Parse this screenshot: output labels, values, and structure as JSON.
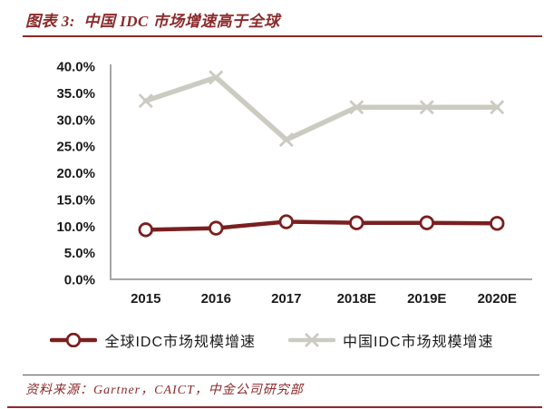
{
  "header": {
    "title": "图表 3:  中国 IDC 市场增速高于全球"
  },
  "footer": {
    "source": "资料来源：Gartner，CAICT，中金公司研究部"
  },
  "colors": {
    "accent_dark_red": "#8B2A2B",
    "series_global": "#7A1F20",
    "series_china": "#CBCBC2",
    "axis_line": "#A6A6A6",
    "tick_text": "#1A1A1A",
    "footer_divider": "#595959"
  },
  "legend": {
    "items": [
      {
        "label": "全球IDC市场规模增速"
      },
      {
        "label": "中国IDC市场规模增速"
      }
    ]
  },
  "chart_data": {
    "type": "line",
    "title": "中国 IDC 市场增速高于全球",
    "categories": [
      "2015",
      "2016",
      "2017",
      "2018E",
      "2019E",
      "2020E"
    ],
    "series": [
      {
        "name": "全球IDC市场规模增速",
        "marker": "circle",
        "color": "#7A1F20",
        "line_width": 4.5,
        "values": [
          9.3,
          9.6,
          10.8,
          10.6,
          10.6,
          10.5
        ]
      },
      {
        "name": "中国IDC市场规模增速",
        "marker": "x",
        "color": "#CBCBC2",
        "line_width": 5.5,
        "values": [
          33.5,
          37.9,
          26.2,
          32.3,
          32.3,
          32.3
        ]
      }
    ],
    "xlabel": "",
    "ylabel": "",
    "ylim": [
      0,
      40
    ],
    "y_ticks": [
      {
        "v": 40,
        "label": "40.0%"
      },
      {
        "v": 35,
        "label": "35.0%"
      },
      {
        "v": 30,
        "label": "30.0%"
      },
      {
        "v": 25,
        "label": "25.0%"
      },
      {
        "v": 20,
        "label": "20.0%"
      },
      {
        "v": 15,
        "label": "15.0%"
      },
      {
        "v": 10,
        "label": "10.0%"
      },
      {
        "v": 5,
        "label": "5.0%"
      },
      {
        "v": 0,
        "label": "0.0%"
      }
    ],
    "grid": false,
    "legend_position": "bottom"
  }
}
